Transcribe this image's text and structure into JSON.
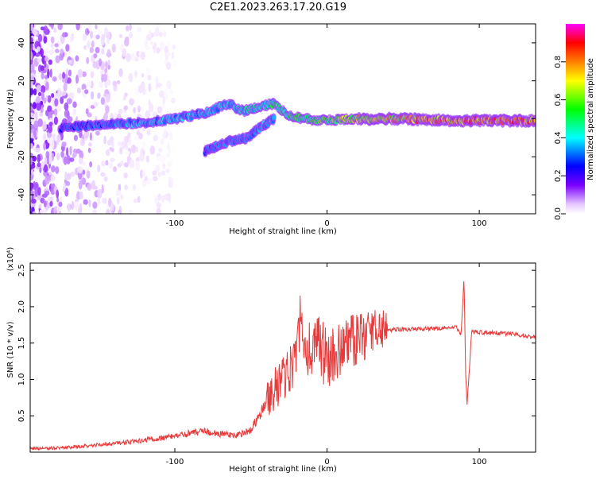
{
  "title": "C2E1.2023.263.17.20.G19",
  "chart_data": [
    {
      "type": "heatmap",
      "xlabel": "Height of straight line (km)",
      "ylabel": "Frequency (Hz)",
      "xlim": [
        -195,
        137
      ],
      "ylim": [
        -50,
        50
      ],
      "xticks": [
        -100,
        0,
        100
      ],
      "yticks": [
        -40,
        -20,
        0,
        20,
        40
      ],
      "colorbar": {
        "label": "Normalized spectral amplitude",
        "range": [
          0,
          1
        ],
        "ticks": [
          "0.0",
          "0.2",
          "0.4",
          "0.6",
          "0.8"
        ],
        "colors": [
          "#ffffff",
          "#7b00ff",
          "#0000ff",
          "#00ffff",
          "#00ff00",
          "#ffff00",
          "#ff8000",
          "#ff0000",
          "#ff00ff"
        ]
      },
      "traces": [
        {
          "points": [
            [
              -175,
              -5
            ],
            [
              -150,
              -3
            ],
            [
              -120,
              -2
            ],
            [
              -100,
              0
            ],
            [
              -80,
              3
            ],
            [
              -65,
              8
            ],
            [
              -55,
              4
            ],
            [
              -45,
              6
            ],
            [
              -35,
              8
            ],
            [
              -25,
              2
            ],
            [
              -15,
              0
            ],
            [
              0,
              -1
            ],
            [
              20,
              0
            ],
            [
              50,
              0
            ],
            [
              85,
              -1
            ],
            [
              137,
              -1
            ]
          ],
          "peak": [
            [
              -175,
              0.3
            ],
            [
              -120,
              0.4
            ],
            [
              -80,
              0.4
            ],
            [
              -40,
              0.5
            ],
            [
              -10,
              0.6
            ],
            [
              20,
              0.75
            ],
            [
              60,
              0.85
            ],
            [
              100,
              0.9
            ],
            [
              137,
              0.9
            ]
          ]
        },
        {
          "points": [
            [
              -80,
              -17
            ],
            [
              -65,
              -12
            ],
            [
              -52,
              -10
            ],
            [
              -45,
              -5
            ],
            [
              -35,
              0
            ]
          ],
          "peak": [
            [
              -80,
              0.35
            ],
            [
              -35,
              0.4
            ]
          ]
        }
      ]
    },
    {
      "type": "line",
      "xlabel": "Height of straight line (km)",
      "ylabel": "SNR (10 * v/v)",
      "yscale_label": "(x10⁴)",
      "xlim": [
        -195,
        137
      ],
      "ylim": [
        0,
        2.6
      ],
      "xticks": [
        -100,
        0,
        100
      ],
      "yticks": [
        0.5,
        1.0,
        1.5,
        2.0,
        2.5
      ],
      "color": "#e83a3a",
      "series": [
        {
          "x": [
            -195,
            -175,
            -155,
            -140,
            -125,
            -110,
            -100,
            -90,
            -80,
            -70,
            -60,
            -50,
            -45,
            -40,
            -35,
            -30,
            -25,
            -20,
            -17,
            -15,
            -12,
            -10,
            -5,
            0,
            5,
            10,
            15,
            20,
            30,
            40,
            50,
            60,
            70,
            80,
            85,
            88,
            90,
            91,
            92,
            95,
            100,
            110,
            120,
            130,
            137
          ],
          "y": [
            0.05,
            0.06,
            0.09,
            0.12,
            0.15,
            0.19,
            0.22,
            0.26,
            0.28,
            0.25,
            0.22,
            0.3,
            0.5,
            0.65,
            0.85,
            1.0,
            1.1,
            1.2,
            2.1,
            1.25,
            1.45,
            1.3,
            1.5,
            1.25,
            1.3,
            1.4,
            1.5,
            1.55,
            1.65,
            1.68,
            1.69,
            1.7,
            1.7,
            1.71,
            1.72,
            1.6,
            2.4,
            1.1,
            0.65,
            1.65,
            1.65,
            1.64,
            1.63,
            1.6,
            1.58
          ]
        }
      ]
    }
  ]
}
